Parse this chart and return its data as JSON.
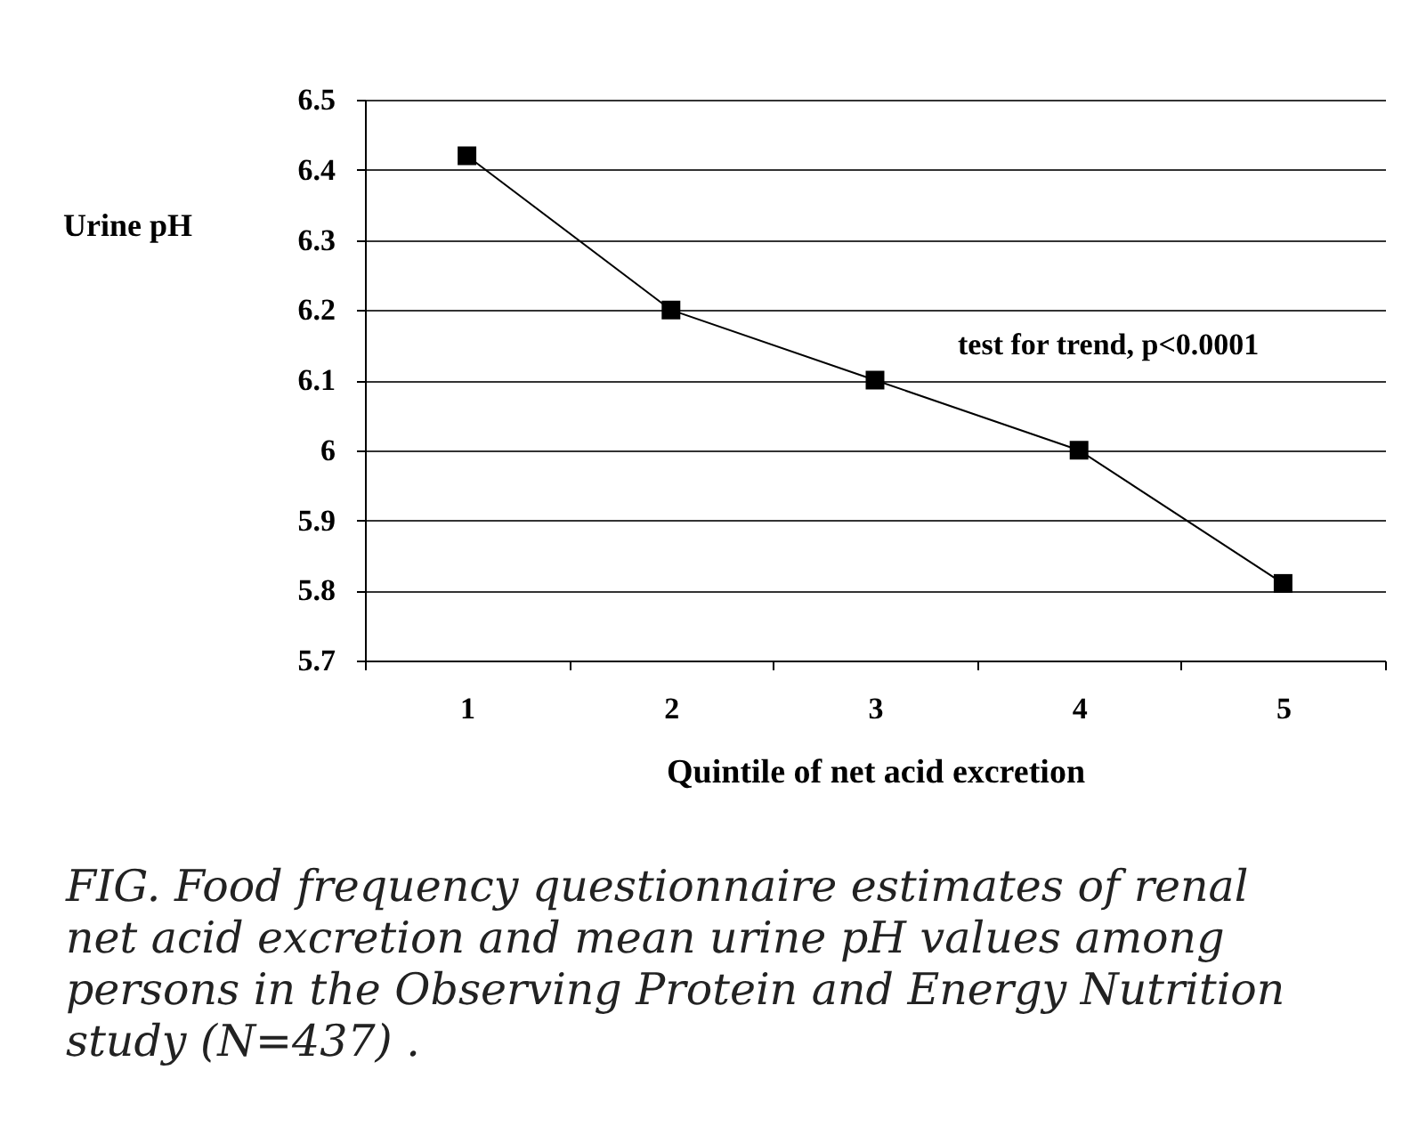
{
  "chart_data": {
    "type": "line",
    "ylabel": "Urine pH",
    "xlabel": "Quintile of net acid excretion",
    "categories": [
      "1",
      "2",
      "3",
      "4",
      "5"
    ],
    "series": [
      {
        "color": "#000000",
        "values": [
          6.42,
          6.2,
          6.1,
          6.0,
          5.81
        ]
      }
    ],
    "ylim": [
      5.7,
      6.5
    ],
    "yticks": [
      5.7,
      5.8,
      5.9,
      6,
      6.1,
      6.2,
      6.3,
      6.4,
      6.5
    ],
    "grid": "y",
    "marker": "square",
    "line_style": "solid",
    "legend": false,
    "annotations": [
      "test for trend, p<0.0001",
      "FIG. Food frequency questionnaire estimates of renal net acid excretion and mean urine pH values among persons in the Observing Protein and Energy Nutrition study (N=437) ."
    ]
  }
}
